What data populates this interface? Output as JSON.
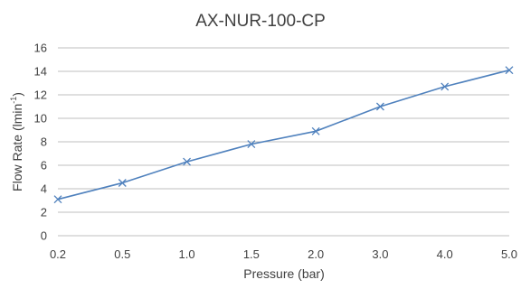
{
  "chart_data": {
    "type": "line",
    "title": "AX-NUR-100-CP",
    "xlabel": "Pressure (bar)",
    "ylabel_main": "Flow Rate (lmin",
    "ylabel_sup": "-1",
    "ylabel_close": ")",
    "categories": [
      "0.2",
      "0.5",
      "1.0",
      "1.5",
      "2.0",
      "3.0",
      "4.0",
      "5.0"
    ],
    "series": [
      {
        "values": [
          3.1,
          4.5,
          6.3,
          7.8,
          8.9,
          11.0,
          12.7,
          14.1
        ]
      }
    ],
    "ylim": [
      0,
      16
    ],
    "yticks": [
      "0",
      "2",
      "4",
      "6",
      "8",
      "10",
      "12",
      "14",
      "16"
    ],
    "grid": true,
    "legend": "none",
    "colors": {
      "series": "#4f81bd",
      "grid": "#bfbfbf",
      "text": "#404040"
    }
  }
}
